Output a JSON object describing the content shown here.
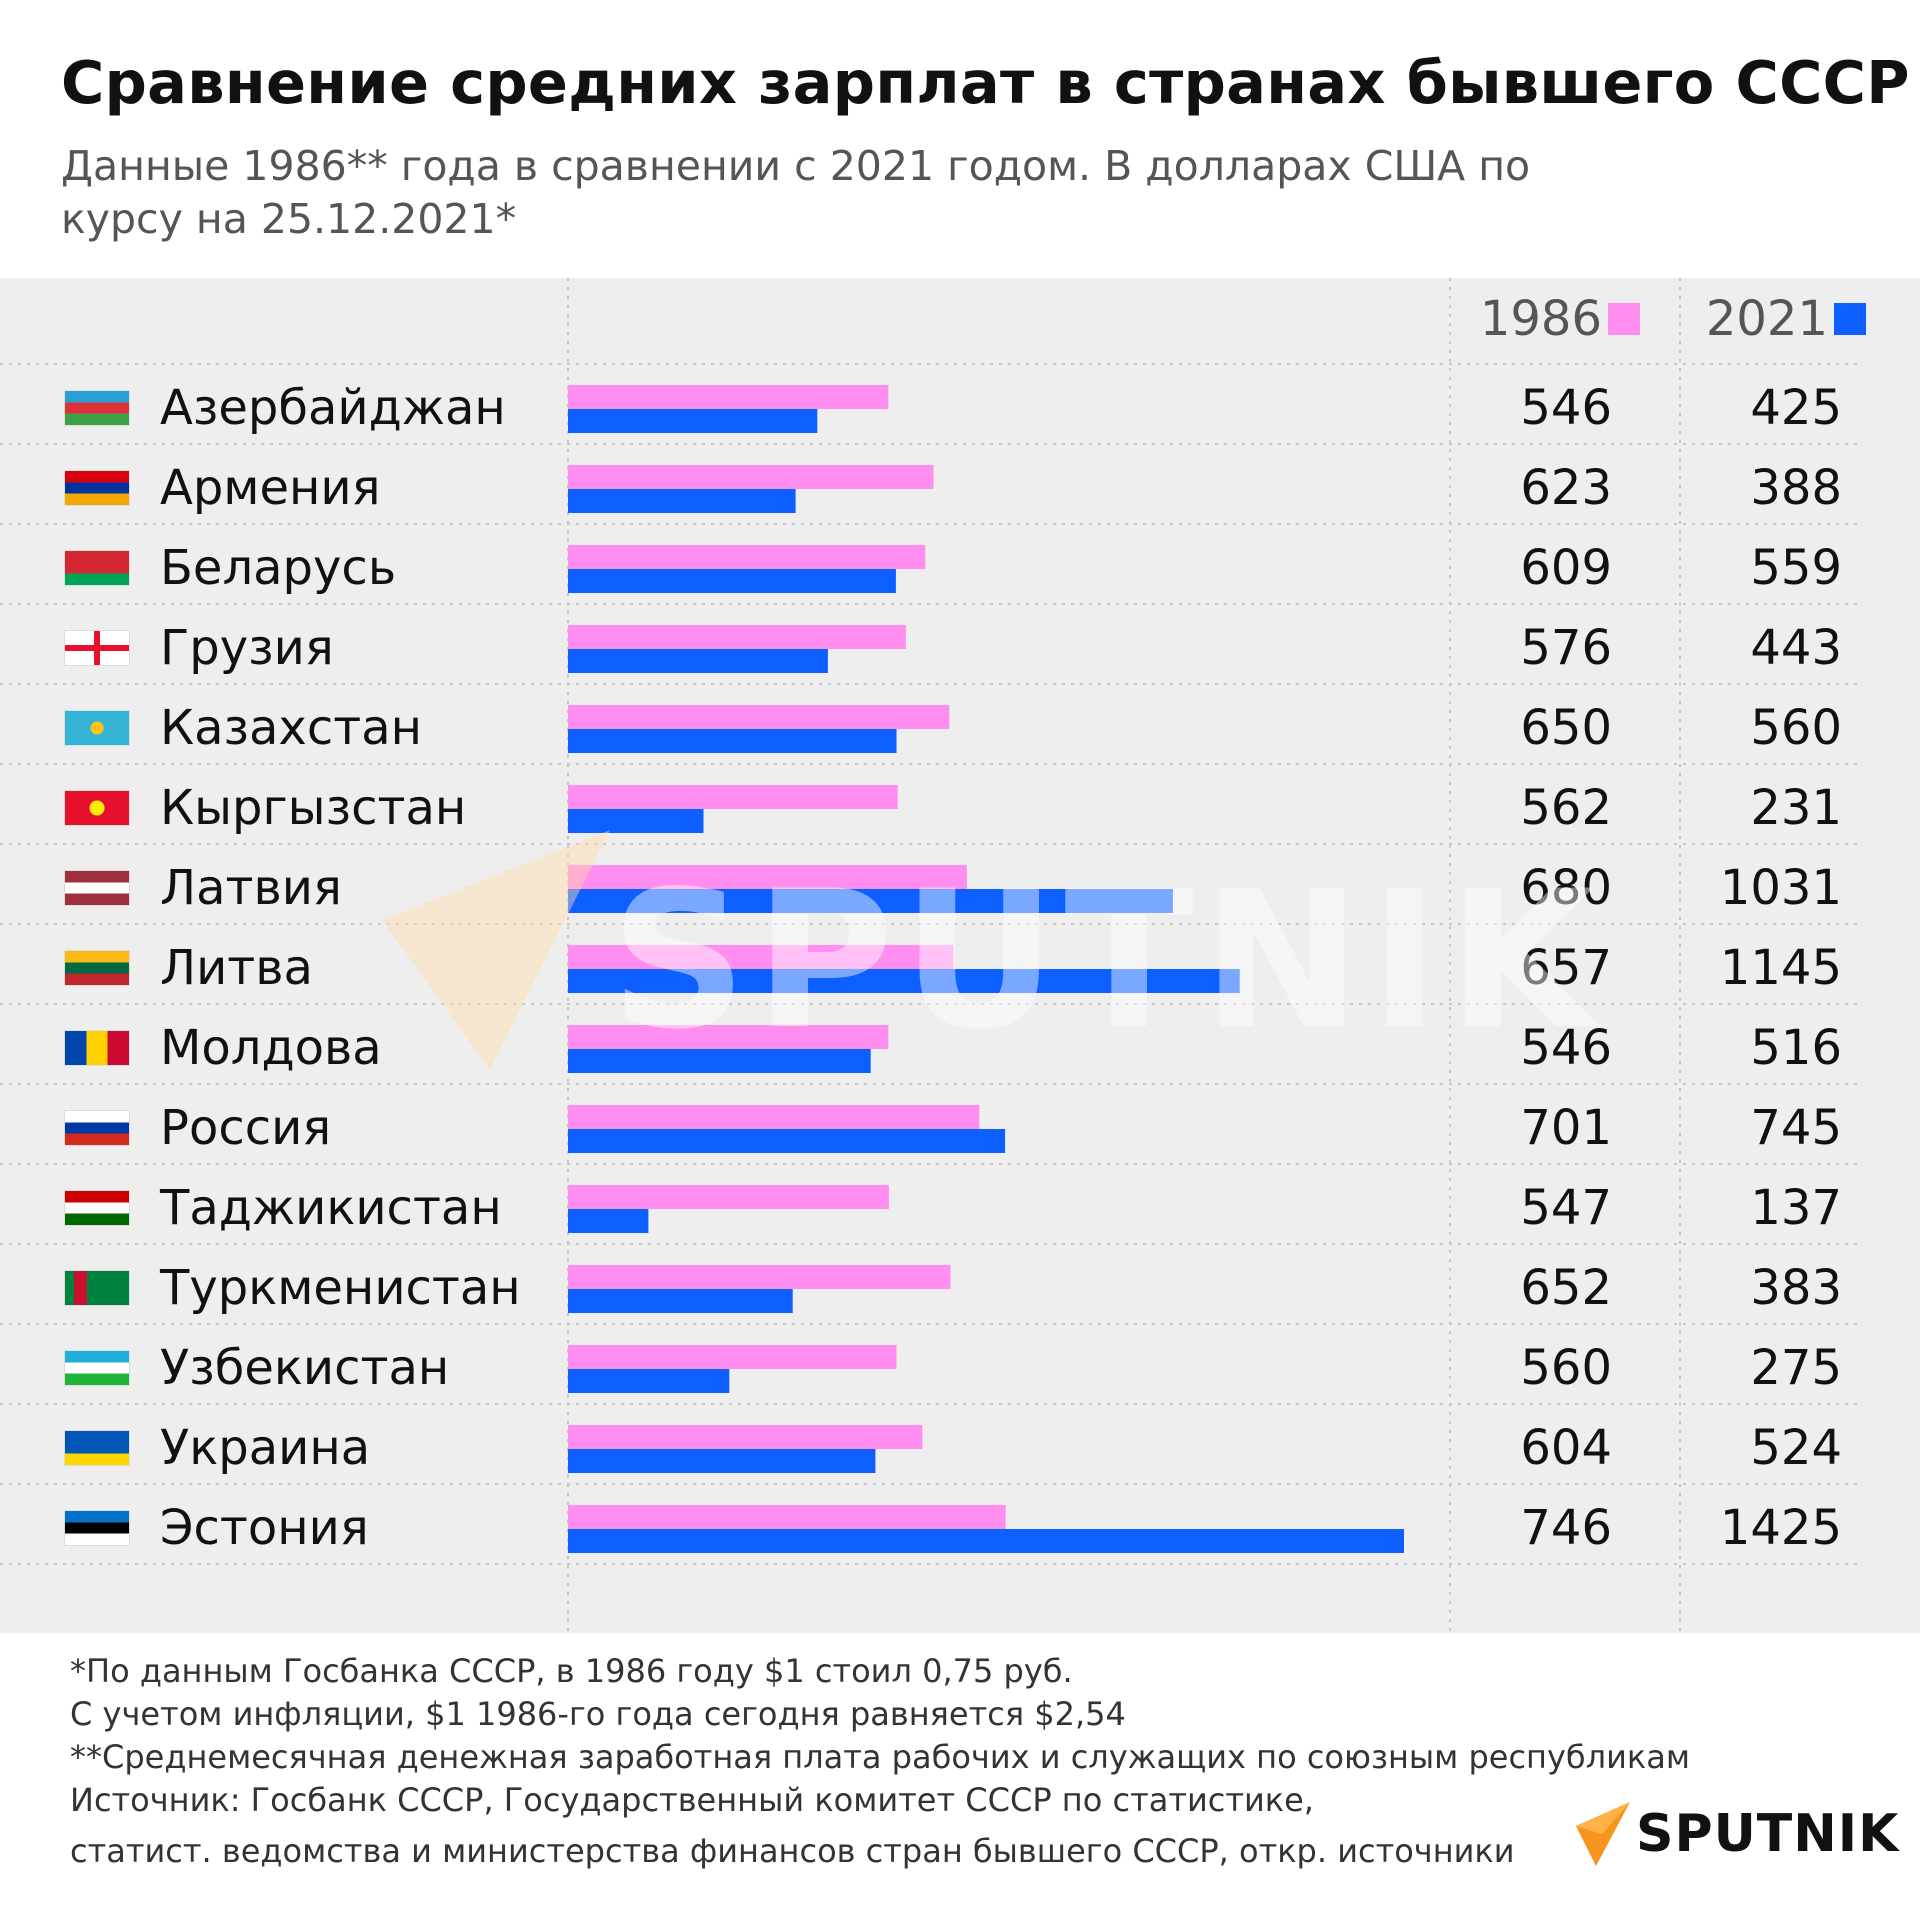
{
  "header": {
    "title": "Сравнение средних зарплат в странах бывшего СССР",
    "subtitle": "Данные 1986** года в сравнении с 2021 годом. В долларах США по курсу на 25.12.2021*"
  },
  "colors": {
    "series_1986": "#ff8ef0",
    "series_2021": "#0d5fff",
    "panel": "#eeeeee"
  },
  "chart_data": {
    "type": "bar",
    "orientation": "horizontal",
    "categories": [
      "Азербайджан",
      "Армения",
      "Беларусь",
      "Грузия",
      "Казахстан",
      "Кыргызстан",
      "Латвия",
      "Литва",
      "Молдова",
      "Россия",
      "Таджикистан",
      "Туркменистан",
      "Узбекистан",
      "Украина",
      "Эстония"
    ],
    "series": [
      {
        "name": "1986",
        "color": "#ff8ef0",
        "values": [
          546,
          623,
          609,
          576,
          650,
          562,
          680,
          657,
          546,
          701,
          547,
          652,
          560,
          604,
          746
        ]
      },
      {
        "name": "2021",
        "color": "#0d5fff",
        "values": [
          425,
          388,
          559,
          443,
          560,
          231,
          1031,
          1145,
          516,
          745,
          137,
          383,
          275,
          524,
          1425
        ]
      }
    ],
    "xlim": [
      0,
      1425
    ],
    "grid": false,
    "legend": "top-right"
  },
  "countries": [
    {
      "name": "Азербайджан",
      "flag": "azerbaijan-flag-icon",
      "v1986": "546",
      "v2021": "425"
    },
    {
      "name": "Армения",
      "flag": "armenia-flag-icon",
      "v1986": "623",
      "v2021": "388"
    },
    {
      "name": "Беларусь",
      "flag": "belarus-flag-icon",
      "v1986": "609",
      "v2021": "559"
    },
    {
      "name": "Грузия",
      "flag": "georgia-flag-icon",
      "v1986": "576",
      "v2021": "443"
    },
    {
      "name": "Казахстан",
      "flag": "kazakhstan-flag-icon",
      "v1986": "650",
      "v2021": "560"
    },
    {
      "name": "Кыргызстан",
      "flag": "kyrgyzstan-flag-icon",
      "v1986": "562",
      "v2021": "231"
    },
    {
      "name": "Латвия",
      "flag": "latvia-flag-icon",
      "v1986": "680",
      "v2021": "1031"
    },
    {
      "name": "Литва",
      "flag": "lithuania-flag-icon",
      "v1986": "657",
      "v2021": "1145"
    },
    {
      "name": "Молдова",
      "flag": "moldova-flag-icon",
      "v1986": "546",
      "v2021": "516"
    },
    {
      "name": "Россия",
      "flag": "russia-flag-icon",
      "v1986": "701",
      "v2021": "745"
    },
    {
      "name": "Таджикистан",
      "flag": "tajikistan-flag-icon",
      "v1986": "547",
      "v2021": "137"
    },
    {
      "name": "Туркменистан",
      "flag": "turkmenistan-flag-icon",
      "v1986": "652",
      "v2021": "383"
    },
    {
      "name": "Узбекистан",
      "flag": "uzbekistan-flag-icon",
      "v1986": "560",
      "v2021": "275"
    },
    {
      "name": "Украина",
      "flag": "ukraine-flag-icon",
      "v1986": "604",
      "v2021": "524"
    },
    {
      "name": "Эстония",
      "flag": "estonia-flag-icon",
      "v1986": "746",
      "v2021": "1425"
    }
  ],
  "legend": {
    "label_1986": "1986",
    "label_2021": "2021"
  },
  "watermark": {
    "text": "SPUTNIK"
  },
  "footnotes": [
    "*По данным Госбанка СССР, в 1986 году $1 стоил 0,75 руб.",
    "С учетом инфляции, $1 1986-го года сегодня равняется $2,54",
    "**Среднемесячная денежная заработная плата рабочих и служащих по союзным республикам",
    "Источник: Госбанк СССР, Государственный комитет СССР по статистике,",
    "статист. ведомства и министерства финансов стран бывшего СССР, откр. источники"
  ],
  "logo": {
    "text": "SPUTNIK"
  }
}
